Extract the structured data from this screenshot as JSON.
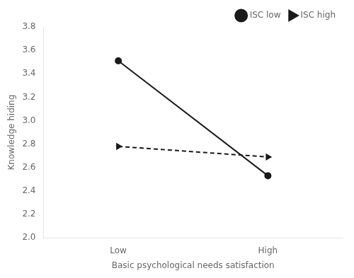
{
  "chart_data": {
    "type": "line",
    "categories": [
      "Low",
      "High"
    ],
    "series": [
      {
        "name": "ISC low",
        "color": "#1a1a1a",
        "marker": "circle",
        "line_style": "solid",
        "values": [
          3.51,
          2.53
        ]
      },
      {
        "name": "ISC high",
        "color": "#1a1a1a",
        "marker": "triangle-right",
        "line_style": "dashed",
        "values": [
          2.78,
          2.69
        ]
      }
    ],
    "xlabel": "Basic psychological needs satisfaction",
    "ylabel": "Knowledge hiding",
    "ylim": [
      2.0,
      3.8
    ],
    "yticks": [
      {
        "value": 2.0,
        "label": "2.0"
      },
      2.2,
      2.4,
      2.6,
      2.8,
      {
        "value": 3.0,
        "label": "3.0"
      },
      3.2,
      3.4,
      3.6,
      3.8
    ],
    "grid": false,
    "legend": "upper right"
  }
}
